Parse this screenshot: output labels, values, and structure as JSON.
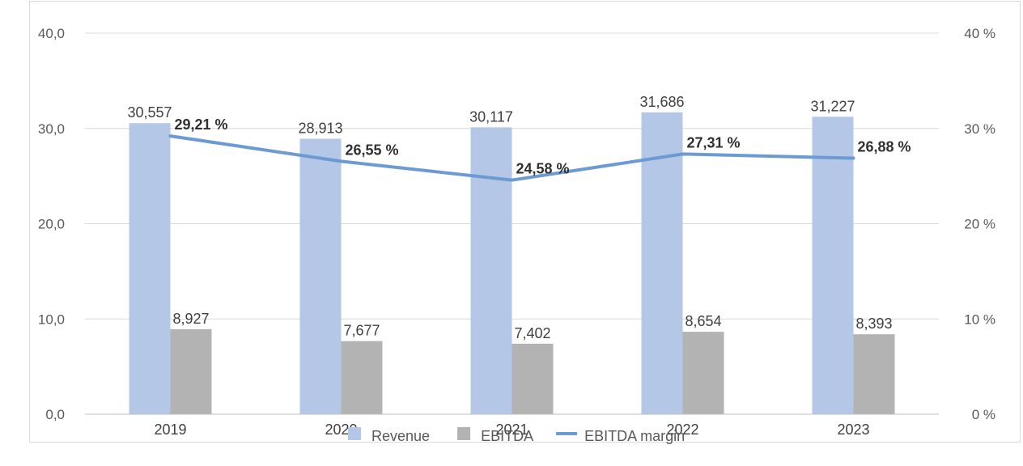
{
  "chart_data": {
    "type": "bar",
    "categories": [
      "2019",
      "2020",
      "2021",
      "2022",
      "2023"
    ],
    "series": [
      {
        "name": "Revenue",
        "kind": "bar",
        "axis": "left",
        "color": "#b4c7e7",
        "values": [
          30.557,
          28.913,
          30.117,
          31.686,
          31.227
        ],
        "labels": [
          "30,557",
          "28,913",
          "30,117",
          "31,686",
          "31,227"
        ]
      },
      {
        "name": "EBITDA",
        "kind": "bar",
        "axis": "left",
        "color": "#b3b3b3",
        "values": [
          8.927,
          7.677,
          7.402,
          8.654,
          8.393
        ],
        "labels": [
          "8,927",
          "7,677",
          "7,402",
          "8,654",
          "8,393"
        ]
      },
      {
        "name": "EBITDA margin",
        "kind": "line",
        "axis": "right",
        "color": "#6b9bd2",
        "values": [
          29.21,
          26.55,
          24.58,
          27.31,
          26.88
        ],
        "labels": [
          "29,21 %",
          "26,55 %",
          "24,58 %",
          "27,31 %",
          "26,88 %"
        ]
      }
    ],
    "y_left": {
      "range": [
        0,
        40
      ],
      "ticks": [
        0,
        10,
        20,
        30,
        40
      ],
      "tick_labels": [
        "0,0",
        "10,0",
        "20,0",
        "30,0",
        "40,0"
      ]
    },
    "y_right": {
      "range": [
        0,
        40
      ],
      "ticks": [
        0,
        10,
        20,
        30,
        40
      ],
      "tick_labels": [
        "0 %",
        "10 %",
        "20 %",
        "30 %",
        "40 %"
      ]
    },
    "grid": true,
    "legend_position": "bottom",
    "colors": {
      "gridline": "#d9d9d9",
      "axis": "#bfbfbf"
    }
  }
}
